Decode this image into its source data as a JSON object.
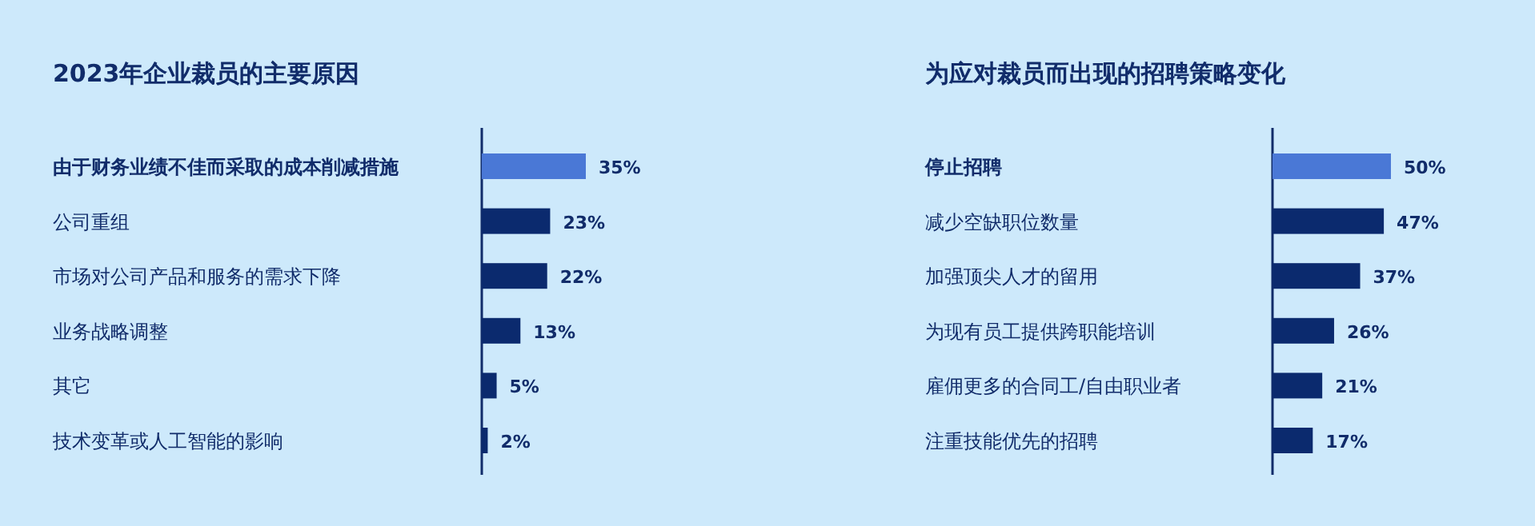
{
  "chart_data": [
    {
      "type": "bar",
      "orientation": "horizontal",
      "title": "2023年企业裁员的主要原因",
      "categories": [
        "由于财务业绩不佳而采取的成本削减措施",
        "公司重组",
        "市场对公司产品和服务的需求下降",
        "业务战略调整",
        "其它",
        "技术变革或人工智能的影响"
      ],
      "values": [
        35,
        23,
        22,
        13,
        5,
        2
      ],
      "value_labels": [
        "35%",
        "23%",
        "22%",
        "13%",
        "5%",
        "2%"
      ],
      "colors": [
        "#4a78d6",
        "#0b2a6e",
        "#0b2a6e",
        "#0b2a6e",
        "#0b2a6e",
        "#0b2a6e"
      ]
    },
    {
      "type": "bar",
      "orientation": "horizontal",
      "title": "为应对裁员而出现的招聘策略变化",
      "categories": [
        "停止招聘",
        "减少空缺职位数量",
        "加强顶尖人才的留用",
        "为现有员工提供跨职能培训",
        "雇佣更多的合同工/自由职业者",
        "注重技能优先的招聘"
      ],
      "values": [
        50,
        47,
        37,
        26,
        21,
        17
      ],
      "value_labels": [
        "50%",
        "47%",
        "37%",
        "26%",
        "21%",
        "17%"
      ],
      "colors": [
        "#4a78d6",
        "#0b2a6e",
        "#0b2a6e",
        "#0b2a6e",
        "#0b2a6e",
        "#0b2a6e"
      ]
    }
  ]
}
